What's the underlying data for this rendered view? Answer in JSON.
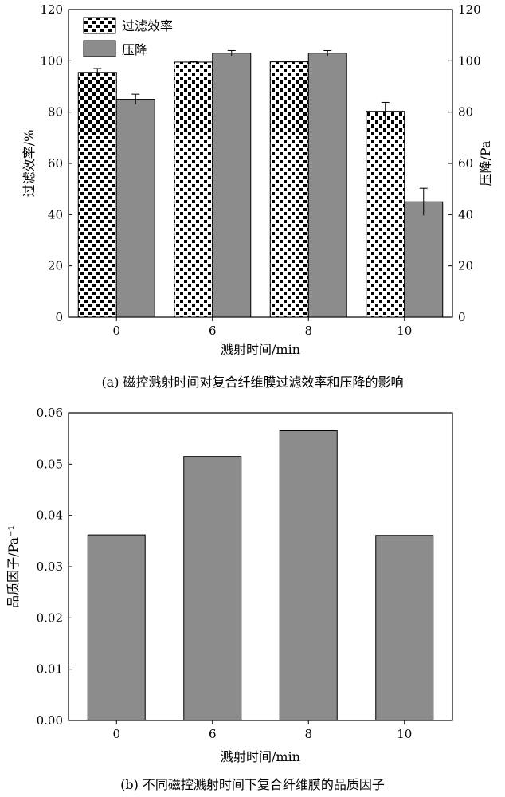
{
  "chart_data": [
    {
      "type": "bar",
      "categories": [
        "0",
        "6",
        "8",
        "10"
      ],
      "series": [
        {
          "name": "过滤效率",
          "values": [
            95.5,
            99.5,
            99.6,
            80.3
          ],
          "errors": [
            1.5,
            0.3,
            0.2,
            3.5
          ],
          "axis": "left"
        },
        {
          "name": "压降",
          "values": [
            85.0,
            103.0,
            103.0,
            45.0
          ],
          "errors": [
            2.0,
            1.0,
            1.0,
            5.3
          ],
          "axis": "right"
        }
      ],
      "xlabel": "溅射时间/min",
      "ylabel": "过滤效率/%",
      "y2label": "压降/Pa",
      "ylim": [
        0,
        120
      ],
      "y2lim": [
        0,
        120
      ],
      "yticks": [
        "0",
        "20",
        "40",
        "60",
        "80",
        "100",
        "120"
      ],
      "y2ticks": [
        "0",
        "20",
        "40",
        "60",
        "80",
        "100",
        "120"
      ],
      "legend": "top-left",
      "caption": "(a)  磁控溅射时间对复合纤维膜过滤效率和压降的影响",
      "colors": {
        "efficiency_fill": "#ffffff",
        "efficiency_dots": "#000000",
        "pressure_fill": "#8c8c8c"
      }
    },
    {
      "type": "bar",
      "categories": [
        "0",
        "6",
        "8",
        "10"
      ],
      "values": [
        0.0362,
        0.0515,
        0.0565,
        0.0361
      ],
      "xlabel": "溅射时间/min",
      "ylabel": "品质因子/Pa⁻¹",
      "ylim": [
        0,
        0.06
      ],
      "yticks": [
        "0.00",
        "0.01",
        "0.02",
        "0.03",
        "0.04",
        "0.05",
        "0.06"
      ],
      "caption": "(b)  不同磁控溅射时间下复合纤维膜的品质因子",
      "colors": {
        "bar_fill": "#8c8c8c"
      }
    }
  ]
}
